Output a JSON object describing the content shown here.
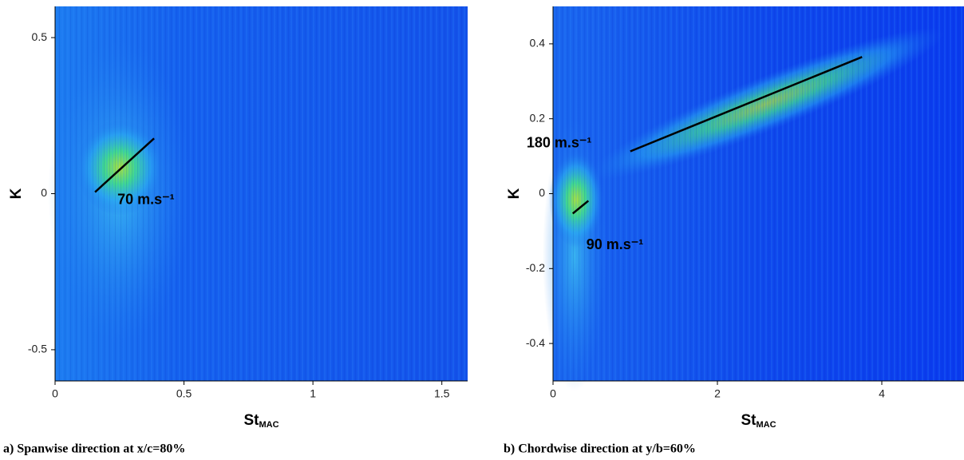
{
  "chart_data": [
    {
      "type": "heatmap",
      "caption": "a) Spanwise direction at x/c=80%",
      "xlabel": {
        "main": "St",
        "sub": "MAC"
      },
      "ylabel": "K",
      "xlim": [
        0,
        1.6
      ],
      "ylim": [
        -0.6,
        0.6
      ],
      "xticks": [
        0,
        0.5,
        1,
        1.5
      ],
      "yticks": [
        -0.5,
        0,
        0.5
      ],
      "annotations": [
        {
          "text": "70 m.s⁻¹",
          "color": "#000000",
          "x": [
            0.155,
            0.384
          ],
          "y": [
            0.005,
            0.177
          ]
        }
      ]
    },
    {
      "type": "heatmap",
      "caption": "b) Chordwise direction at y/b=60%",
      "xlabel": {
        "main": "St",
        "sub": "MAC"
      },
      "ylabel": "K",
      "xlim": [
        0,
        5
      ],
      "ylim": [
        -0.5,
        0.5
      ],
      "xticks": [
        0,
        2,
        4
      ],
      "yticks": [
        -0.4,
        -0.2,
        0,
        0.2,
        0.4
      ],
      "annotations": [
        {
          "text": "180 m.s⁻¹",
          "color": "#000000",
          "x": [
            0.94,
            3.76
          ],
          "y": [
            0.113,
            0.365
          ]
        },
        {
          "text": "90 m.s⁻¹",
          "color": "#000000",
          "x": [
            0.24,
            0.43
          ],
          "y": [
            -0.053,
            -0.019
          ]
        }
      ]
    }
  ]
}
